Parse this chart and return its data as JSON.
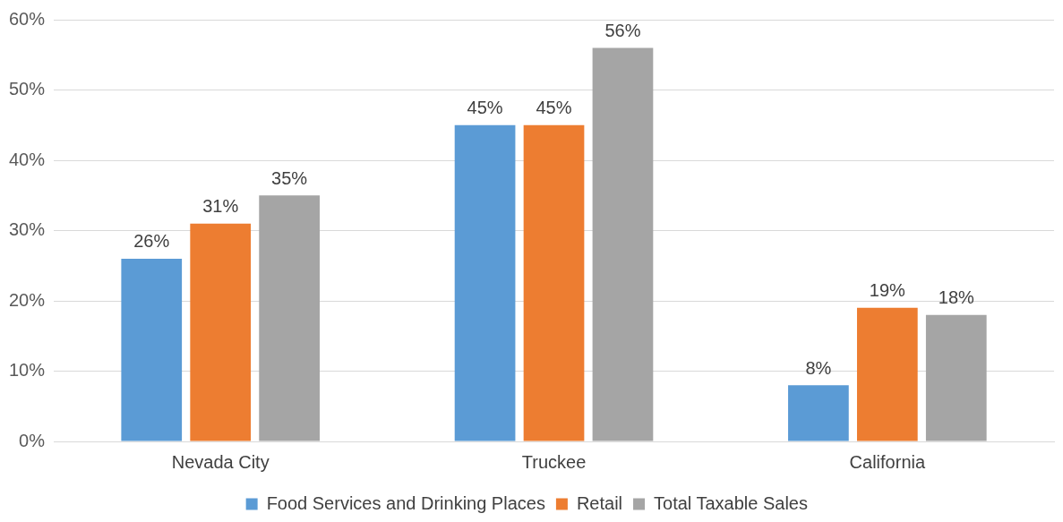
{
  "chart_data": {
    "type": "bar",
    "categories": [
      "Nevada City",
      "Truckee",
      "California"
    ],
    "series": [
      {
        "name": "Food Services and Drinking Places",
        "color": "#5b9bd5",
        "values": [
          26,
          45,
          8
        ],
        "value_labels": [
          "26%",
          "45%",
          "8%"
        ]
      },
      {
        "name": "Retail",
        "color": "#ed7d31",
        "values": [
          31,
          45,
          19
        ],
        "value_labels": [
          "31%",
          "45%",
          "19%"
        ]
      },
      {
        "name": "Total Taxable Sales",
        "color": "#a5a5a5",
        "values": [
          35,
          56,
          18
        ],
        "value_labels": [
          "35%",
          "56%",
          "18%"
        ]
      }
    ],
    "ylim": [
      0,
      60
    ],
    "yticks": [
      {
        "value": 0,
        "label": "0%"
      },
      {
        "value": 10,
        "label": "10%"
      },
      {
        "value": 20,
        "label": "20%"
      },
      {
        "value": 30,
        "label": "30%"
      },
      {
        "value": 40,
        "label": "40%"
      },
      {
        "value": 50,
        "label": "50%"
      },
      {
        "value": 60,
        "label": "60%"
      }
    ],
    "grid": "y",
    "legend": "bottom"
  }
}
